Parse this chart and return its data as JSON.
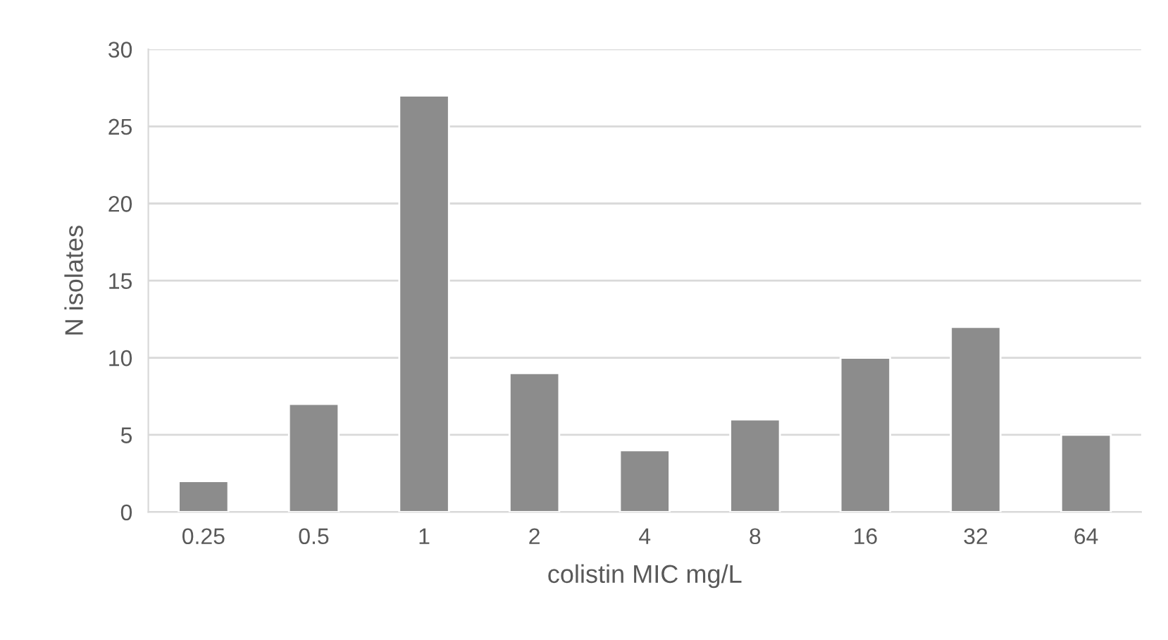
{
  "chart_data": {
    "type": "bar",
    "xlabel": "colistin MIC mg/L",
    "ylabel": "N isolates",
    "categories": [
      "0.25",
      "0.5",
      "1",
      "2",
      "4",
      "8",
      "16",
      "32",
      "64"
    ],
    "values": [
      2,
      7,
      27,
      9,
      4,
      6,
      10,
      12,
      5
    ],
    "color": "#8c8c8c",
    "ylim": [
      0,
      30
    ],
    "yticks": [
      0,
      5,
      10,
      15,
      20,
      25,
      30
    ],
    "grid": "y"
  }
}
